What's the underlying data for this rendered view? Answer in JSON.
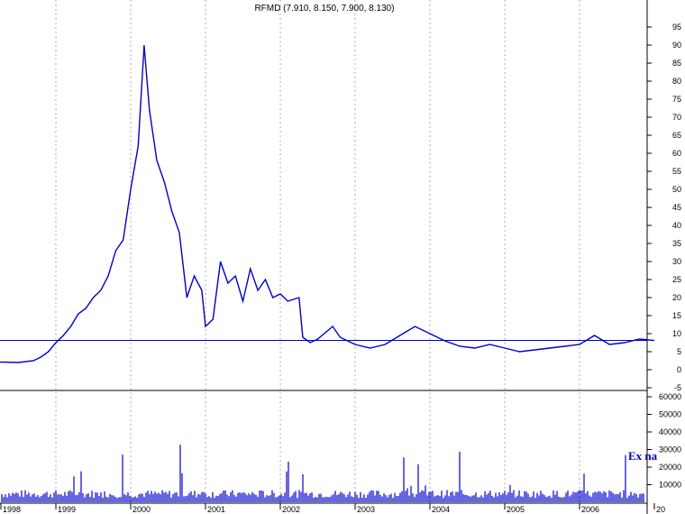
{
  "chart_data": {
    "type": "line",
    "title": "RFMD (7.910, 8.150, 7.900, 8.130)",
    "xlabel": "",
    "ylabel": "",
    "x_ticks": [
      "1998",
      "1999",
      "2000",
      "2001",
      "2002",
      "2003",
      "2004",
      "2005",
      "2006",
      "20"
    ],
    "price_axis": {
      "ylim": [
        -5,
        100
      ],
      "ticks": [
        95,
        90,
        85,
        80,
        75,
        70,
        65,
        60,
        55,
        50,
        45,
        40,
        35,
        30,
        25,
        20,
        15,
        10,
        5,
        0,
        -5
      ]
    },
    "volume_axis": {
      "ylim": [
        0,
        60000
      ],
      "ticks": [
        60000,
        50000,
        40000,
        30000,
        20000,
        10000
      ]
    },
    "grid": {
      "vertical": true,
      "horizontal": false
    },
    "reference_line": {
      "value": 8.13
    },
    "series": [
      {
        "values": [
          [
            1998.0,
            2.2
          ],
          [
            1998.3,
            2.1
          ],
          [
            1998.5,
            2.0
          ],
          [
            1998.7,
            2.5
          ],
          [
            1998.8,
            3.5
          ],
          [
            1998.9,
            5.0
          ],
          [
            1999.0,
            7.5
          ],
          [
            1999.1,
            9.5
          ],
          [
            1999.2,
            12.0
          ],
          [
            1999.3,
            15.5
          ],
          [
            1999.4,
            17.0
          ],
          [
            1999.5,
            20.0
          ],
          [
            1999.6,
            22.0
          ],
          [
            1999.7,
            26.0
          ],
          [
            1999.8,
            33.0
          ],
          [
            1999.9,
            36.0
          ],
          [
            2000.0,
            50.0
          ],
          [
            2000.1,
            62.0
          ],
          [
            2000.18,
            90.0
          ],
          [
            2000.25,
            72.0
          ],
          [
            2000.35,
            58.0
          ],
          [
            2000.45,
            52.0
          ],
          [
            2000.55,
            44.0
          ],
          [
            2000.65,
            38.0
          ],
          [
            2000.75,
            20.0
          ],
          [
            2000.85,
            26.0
          ],
          [
            2000.95,
            22.0
          ],
          [
            2001.0,
            12.0
          ],
          [
            2001.1,
            14.0
          ],
          [
            2001.2,
            30.0
          ],
          [
            2001.3,
            24.0
          ],
          [
            2001.4,
            26.0
          ],
          [
            2001.5,
            19.0
          ],
          [
            2001.6,
            28.0
          ],
          [
            2001.7,
            22.0
          ],
          [
            2001.8,
            25.0
          ],
          [
            2001.9,
            20.0
          ],
          [
            2002.0,
            21.0
          ],
          [
            2002.1,
            19.0
          ],
          [
            2002.25,
            20.0
          ],
          [
            2002.3,
            9.0
          ],
          [
            2002.4,
            7.5
          ],
          [
            2002.5,
            8.5
          ],
          [
            2002.7,
            12.0
          ],
          [
            2002.8,
            9.0
          ],
          [
            2003.0,
            7.0
          ],
          [
            2003.2,
            6.0
          ],
          [
            2003.4,
            7.0
          ],
          [
            2003.6,
            9.5
          ],
          [
            2003.8,
            12.0
          ],
          [
            2004.0,
            10.0
          ],
          [
            2004.2,
            8.0
          ],
          [
            2004.4,
            6.5
          ],
          [
            2004.6,
            6.0
          ],
          [
            2004.8,
            7.0
          ],
          [
            2005.0,
            6.0
          ],
          [
            2005.2,
            5.0
          ],
          [
            2005.4,
            5.5
          ],
          [
            2005.6,
            6.0
          ],
          [
            2005.8,
            6.5
          ],
          [
            2006.0,
            7.0
          ],
          [
            2006.2,
            9.5
          ],
          [
            2006.4,
            7.0
          ],
          [
            2006.6,
            7.5
          ],
          [
            2006.8,
            8.5
          ],
          [
            2007.0,
            8.1
          ]
        ]
      }
    ],
    "volume_note": "Ex na"
  }
}
